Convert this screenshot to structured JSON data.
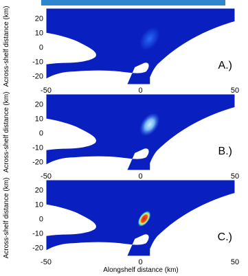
{
  "colors": {
    "ocean": "#0a1fc0",
    "land": "#ffffff",
    "top_bar": "#2f86cf",
    "plume_low": "#2a73ff",
    "plume_mid": "#8fd8ff",
    "plume_high": "#d4221b",
    "plume_ring": "#ffe066",
    "plume_glow": "#35e0b8"
  },
  "chart_data": {
    "type": "heatmap",
    "xlabel": "Alongshelf distance (km)",
    "ylabel": "Across-shelf distance (km)",
    "xlim": [
      -50,
      50
    ],
    "ylim": [
      -26,
      27
    ],
    "x_ticks": [
      -50,
      0,
      50
    ],
    "y_ticks": [
      -20,
      -10,
      0,
      10,
      20
    ],
    "grid": false,
    "panels": [
      {
        "label": "A.)",
        "plume": {
          "x": 3,
          "y": 4,
          "intensity": 0.25
        }
      },
      {
        "label": "B.)",
        "plume": {
          "x": 3,
          "y": 4,
          "intensity": 0.45
        }
      },
      {
        "label": "C.)",
        "plume": {
          "x": 2,
          "y": 0,
          "intensity": 1.0
        }
      }
    ]
  }
}
